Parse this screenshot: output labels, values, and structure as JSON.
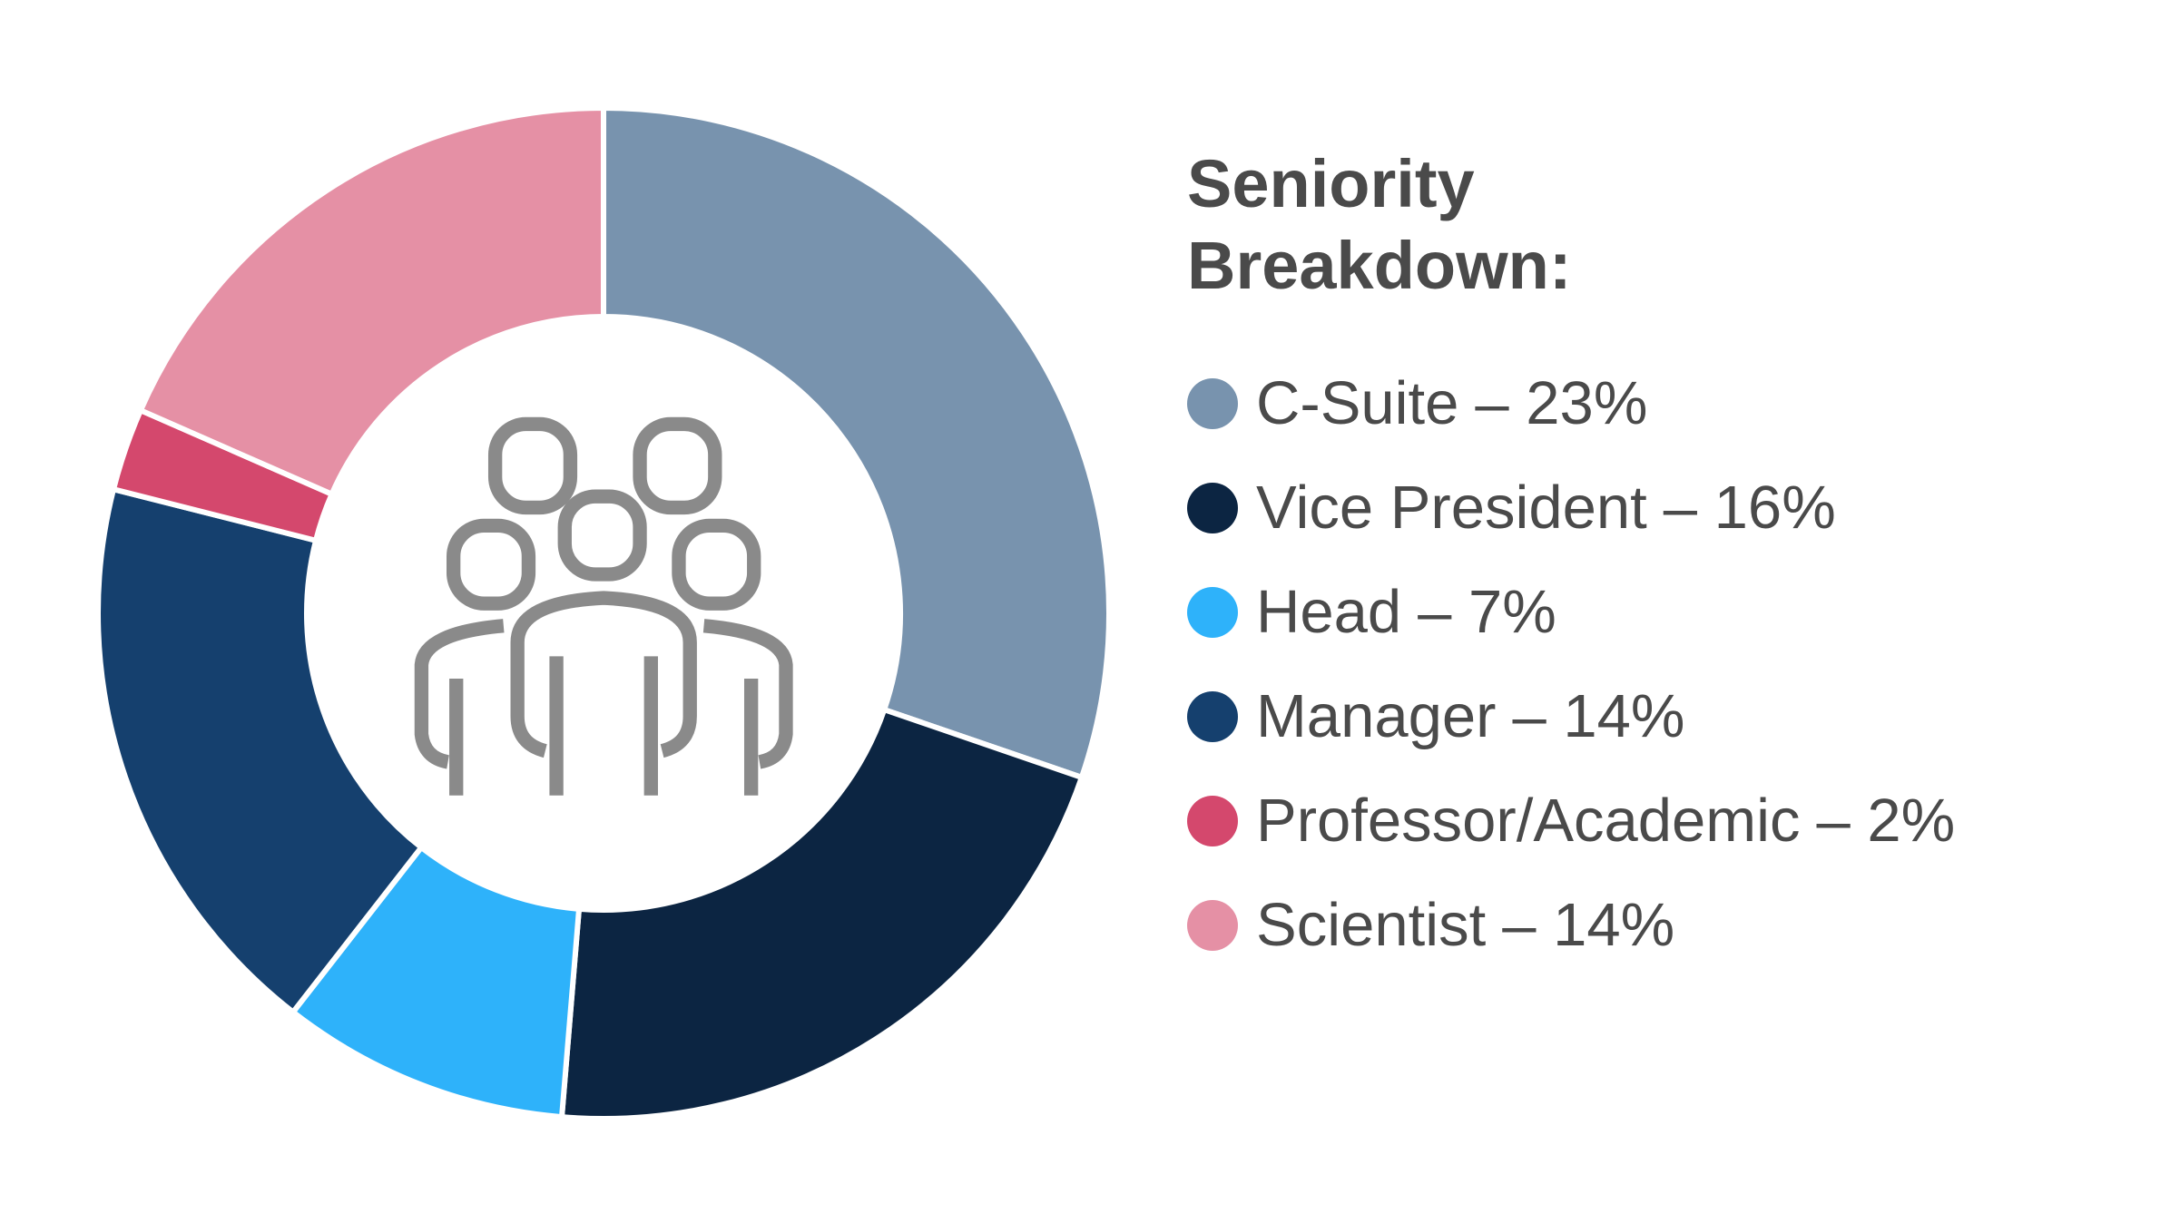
{
  "chart_data": {
    "type": "donut",
    "title": "Seniority Breakdown:",
    "categories": [
      "C-Suite",
      "Vice President",
      "Head",
      "Manager",
      "Professor/Academic",
      "Scientist"
    ],
    "values": [
      23,
      16,
      7,
      14,
      2,
      14
    ],
    "value_labels": [
      "– 23%",
      "– 16%",
      "– 7%",
      "– 14%",
      "– 2%",
      "– 14%"
    ],
    "colors": [
      "#7893ae",
      "#0c2542",
      "#2eb2fa",
      "#15406e",
      "#d4486d",
      "#e590a5"
    ]
  }
}
